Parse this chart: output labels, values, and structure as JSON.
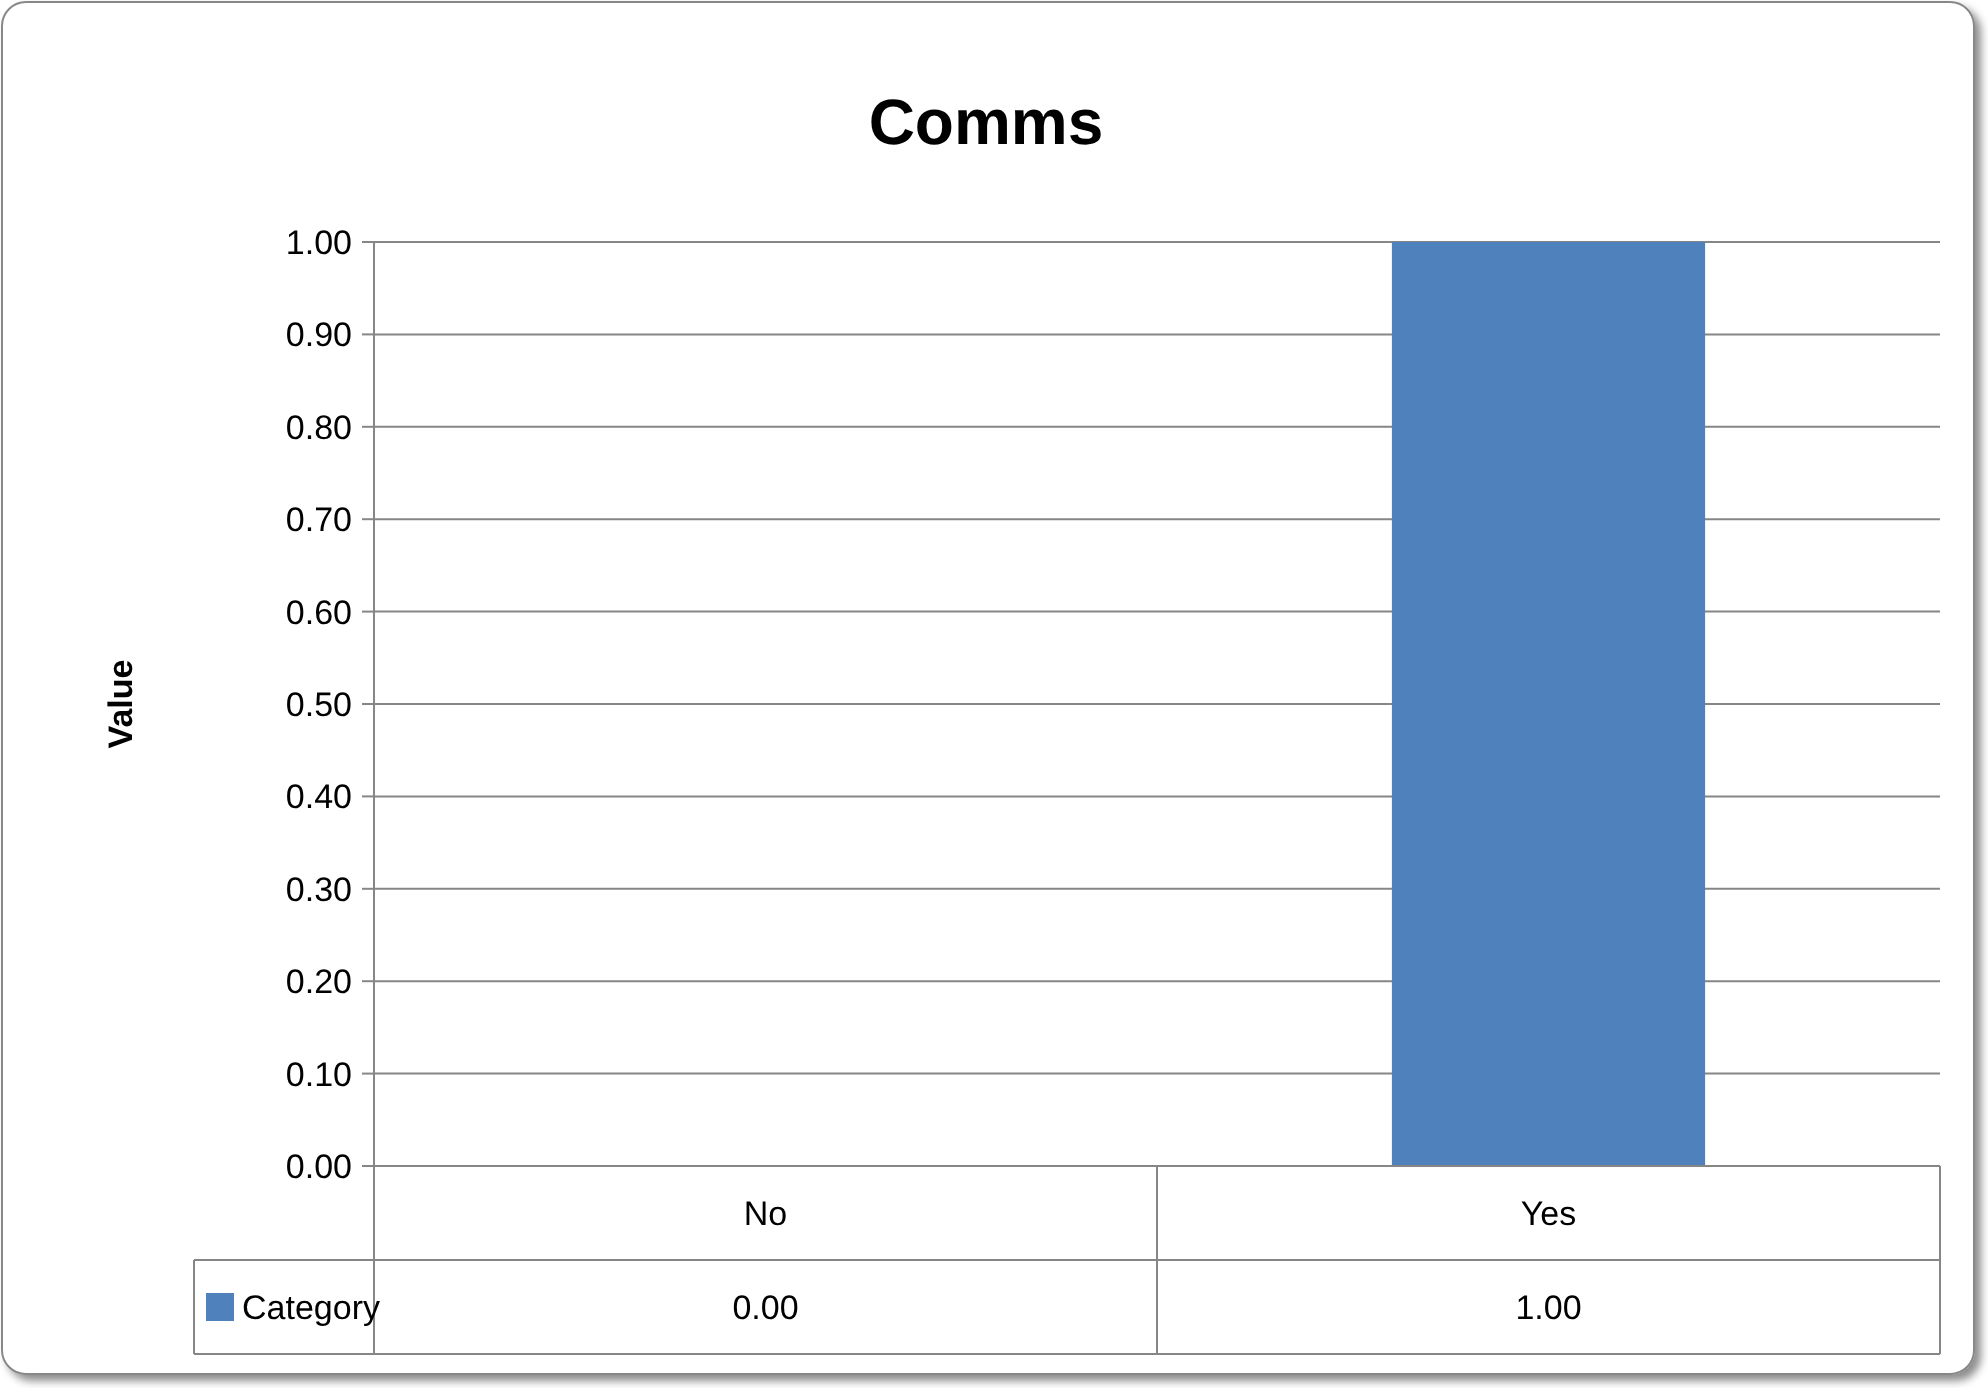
{
  "chart_data": {
    "type": "bar",
    "title": "Comms",
    "ylabel": "Value",
    "categories": [
      "No",
      "Yes"
    ],
    "series": [
      {
        "name": "Category",
        "color": "#4f81bd",
        "values": [
          0,
          1
        ],
        "value_labels": [
          "0.00",
          "1.00"
        ]
      }
    ],
    "ylim": [
      0,
      1
    ],
    "yticks": [
      {
        "value": 0,
        "label": "0.00"
      },
      {
        "value": 0.1,
        "label": "0.10"
      },
      {
        "value": 0.2,
        "label": "0.20"
      },
      {
        "value": 0.3,
        "label": "0.30"
      },
      {
        "value": 0.4,
        "label": "0.40"
      },
      {
        "value": 0.5,
        "label": "0.50"
      },
      {
        "value": 0.6,
        "label": "0.60"
      },
      {
        "value": 0.7,
        "label": "0.70"
      },
      {
        "value": 0.8,
        "label": "0.80"
      },
      {
        "value": 0.9,
        "label": "0.90"
      },
      {
        "value": 1,
        "label": "1.00"
      }
    ],
    "grid": "y",
    "legend": "bottom"
  }
}
